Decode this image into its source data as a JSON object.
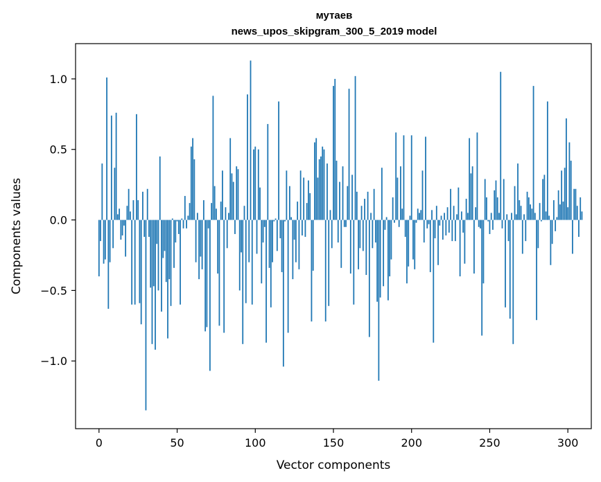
{
  "chart_data": {
    "type": "bar",
    "title_line1": "мутаев",
    "title_line2": "news_upos_skipgram_300_5_2019 model",
    "xlabel": "Vector components",
    "ylabel": "Components values",
    "xlim": [
      -15,
      315
    ],
    "ylim": [
      -1.48,
      1.25
    ],
    "xticks": [
      0,
      50,
      100,
      150,
      200,
      250,
      300
    ],
    "xtick_labels": [
      "0",
      "50",
      "100",
      "150",
      "200",
      "250",
      "300"
    ],
    "yticks": [
      -1.0,
      -0.5,
      0.0,
      0.5,
      1.0
    ],
    "ytick_labels": [
      "−1.0",
      "−0.5",
      "0.0",
      "0.5",
      "1.0"
    ],
    "bar_color": "#1f77b4",
    "values": [
      -0.4,
      -0.15,
      0.4,
      -0.31,
      -0.28,
      1.01,
      -0.63,
      -0.3,
      0.74,
      -0.2,
      0.37,
      0.76,
      0.04,
      0.08,
      -0.14,
      -0.11,
      -0.04,
      -0.26,
      0.1,
      0.22,
      0.06,
      -0.6,
      0.14,
      -0.6,
      0.75,
      0.14,
      -0.59,
      -0.74,
      0.2,
      -0.12,
      -1.35,
      0.22,
      -0.12,
      -0.48,
      -0.88,
      -0.47,
      -0.92,
      -0.17,
      -0.5,
      0.45,
      -0.65,
      -0.27,
      -0.22,
      -0.44,
      -0.84,
      -0.42,
      -0.61,
      0.01,
      -0.34,
      -0.16,
      -0.01,
      -0.1,
      -0.6,
      0.01,
      -0.06,
      0.17,
      -0.06,
      0.03,
      0.12,
      0.52,
      0.58,
      0.43,
      -0.3,
      0.05,
      -0.42,
      -0.26,
      -0.35,
      0.14,
      -0.79,
      -0.76,
      -0.06,
      -1.07,
      0.12,
      0.88,
      0.24,
      0.08,
      -0.38,
      -0.75,
      0.13,
      0.35,
      -0.8,
      0.09,
      -0.2,
      0.05,
      0.58,
      0.33,
      0.27,
      -0.1,
      0.38,
      0.36,
      -0.5,
      -0.23,
      -0.88,
      0.1,
      -0.59,
      0.89,
      -0.3,
      1.13,
      -0.6,
      0.5,
      0.52,
      -0.24,
      0.5,
      0.23,
      -0.45,
      -0.16,
      -0.05,
      -0.87,
      0.68,
      -0.34,
      -0.62,
      -0.3,
      -0.01,
      0.01,
      -0.22,
      0.84,
      -0.13,
      -0.37,
      -1.04,
      -0.01,
      0.35,
      -0.8,
      0.24,
      0.02,
      -0.42,
      -0.14,
      -0.3,
      0.13,
      -0.35,
      0.35,
      -0.11,
      0.3,
      -0.12,
      0.12,
      0.28,
      0.19,
      -0.72,
      -0.36,
      0.55,
      0.58,
      0.3,
      0.43,
      0.45,
      0.52,
      0.5,
      -0.72,
      0.4,
      -0.61,
      0.07,
      -0.2,
      0.95,
      1.0,
      0.42,
      -0.16,
      0.27,
      -0.34,
      0.38,
      -0.05,
      -0.05,
      0.24,
      0.93,
      -0.38,
      0.32,
      -0.6,
      1.02,
      0.2,
      -0.35,
      -0.2,
      0.1,
      -0.22,
      0.15,
      -0.39,
      0.2,
      -0.83,
      0.05,
      -0.2,
      0.22,
      -0.16,
      -0.58,
      -1.14,
      -0.55,
      0.37,
      -0.47,
      -0.07,
      0.02,
      -0.57,
      -0.4,
      -0.28,
      0.16,
      -0.02,
      0.62,
      0.3,
      -0.05,
      0.38,
      0.08,
      0.6,
      -0.12,
      -0.45,
      -0.33,
      0.03,
      0.6,
      -0.28,
      -0.35,
      -0.02,
      0.08,
      0.05,
      0.07,
      0.35,
      -0.16,
      0.59,
      -0.06,
      -0.03,
      -0.37,
      0.07,
      -0.87,
      -0.13,
      0.1,
      -0.32,
      -0.04,
      0.03,
      -0.14,
      0.05,
      -0.11,
      0.09,
      -0.09,
      0.22,
      -0.15,
      0.1,
      -0.15,
      0.04,
      0.23,
      -0.4,
      0.06,
      -0.09,
      -0.31,
      0.15,
      0.05,
      0.58,
      0.33,
      0.38,
      -0.38,
      0.09,
      0.62,
      -0.05,
      -0.06,
      -0.82,
      -0.45,
      0.29,
      0.16,
      -0.01,
      -0.1,
      0.05,
      -0.07,
      0.21,
      0.28,
      0.16,
      0.05,
      1.05,
      -0.06,
      0.29,
      -0.62,
      0.04,
      -0.15,
      -0.7,
      0.05,
      -0.88,
      0.24,
      0.04,
      0.4,
      0.14,
      0.1,
      -0.24,
      0.04,
      -0.15,
      0.2,
      0.16,
      0.11,
      0.08,
      0.95,
      0.05,
      -0.71,
      -0.2,
      0.12,
      -0.01,
      0.29,
      0.32,
      0.06,
      0.84,
      0.03,
      -0.32,
      -0.17,
      0.14,
      -0.08,
      0.02,
      0.21,
      0.11,
      0.35,
      0.13,
      0.37,
      0.72,
      0.09,
      0.55,
      0.42,
      -0.24,
      0.22,
      0.22,
      0.1,
      -0.12,
      0.16,
      0.06
    ]
  }
}
